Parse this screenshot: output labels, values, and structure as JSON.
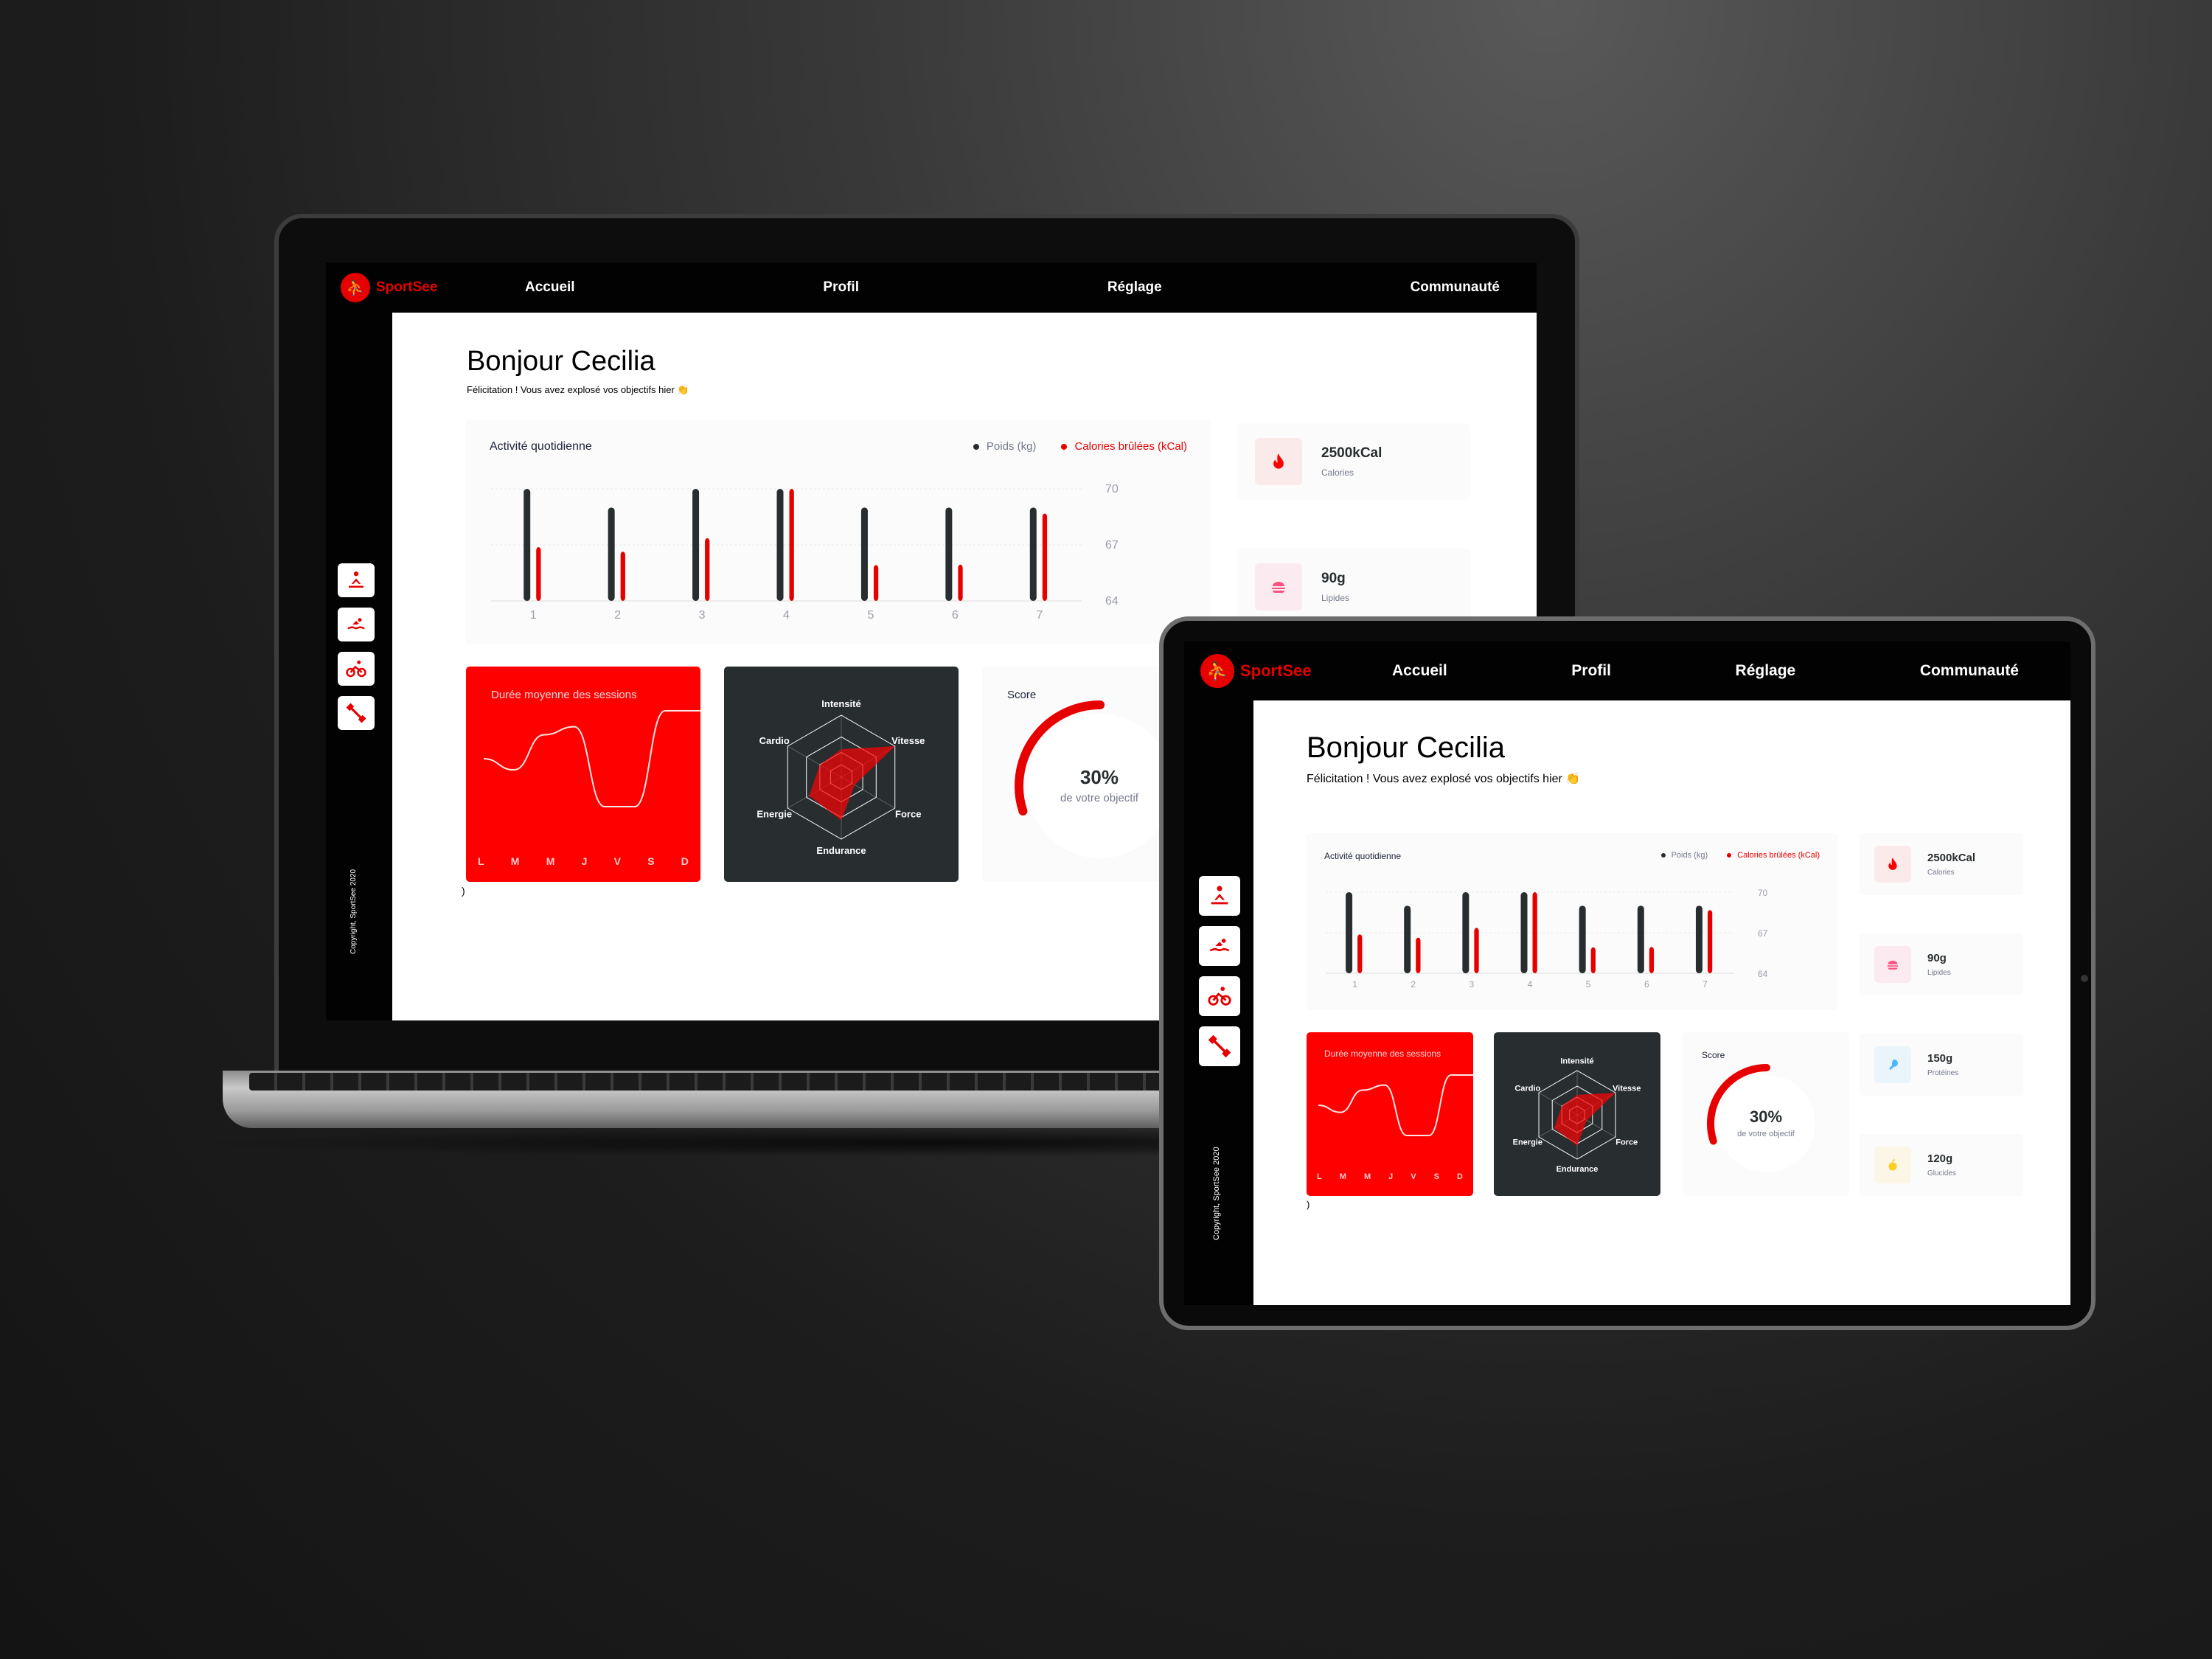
{
  "app": {
    "brand": "SportSee",
    "nav": [
      "Accueil",
      "Profil",
      "Réglage",
      "Communauté"
    ],
    "copyright": "Copyright, SportSee 2020",
    "sidebar_icons": [
      "yoga-icon",
      "swimming-icon",
      "cycling-icon",
      "dumbbell-icon"
    ]
  },
  "greeting": {
    "hello": "Bonjour",
    "name": "Cecilia",
    "message": "Félicitation ! Vous avez explosé vos objectifs hier 👏"
  },
  "activity": {
    "title": "Activité quotidienne",
    "legend_weight": "Poids (kg)",
    "legend_calories": "Calories brûlées (kCal)",
    "y_ticks": [
      "70",
      "67",
      "64"
    ]
  },
  "sessions": {
    "title": "Durée moyenne des sessions",
    "days": [
      "L",
      "M",
      "M",
      "J",
      "V",
      "S",
      "D"
    ]
  },
  "performance": {
    "labels": [
      "Intensité",
      "Vitesse",
      "Force",
      "Endurance",
      "Energie",
      "Cardio"
    ]
  },
  "score": {
    "title": "Score",
    "percent": "30%",
    "caption": "de votre objectif",
    "value": 0.3
  },
  "kpis": [
    {
      "value": "2500kCal",
      "label": "Calories",
      "icon": "flame-icon",
      "color": "#ff0000",
      "bg": "#fbeaea"
    },
    {
      "value": "90g",
      "label": "Lipides",
      "icon": "burger-icon",
      "color": "#fd5181",
      "bg": "#fbeaef"
    },
    {
      "value": "150g",
      "label": "Protéines",
      "icon": "drumstick-icon",
      "color": "#4ab8ff",
      "bg": "#e9f4fb"
    },
    {
      "value": "120g",
      "label": "Glucides",
      "icon": "apple-icon",
      "color": "#f9ce23",
      "bg": "#fbf6e5"
    }
  ],
  "laptop_kpi_2500": "2500kCal",
  "laptop_kpi_calories": "Calories",
  "paren": ")",
  "colors": {
    "accent": "#e60000",
    "topbar": "#020203",
    "radar_bg": "#282d30",
    "bar_dark": "#282d30"
  },
  "chart_data": {
    "type": "bar",
    "title": "Activité quotidienne",
    "categories": [
      "1",
      "2",
      "3",
      "4",
      "5",
      "6",
      "7"
    ],
    "series": [
      {
        "name": "Poids (kg)",
        "values": [
          70,
          69,
          70,
          70,
          69,
          69,
          69
        ]
      },
      {
        "name": "Calories brûlées (kCal)",
        "values": [
          240,
          220,
          280,
          500,
          160,
          162,
          390
        ]
      }
    ],
    "y_ticks": [
      64,
      67,
      70
    ],
    "session_curve": [
      30,
      23,
      45,
      50,
      0,
      0,
      60
    ],
    "radar_values": [
      90,
      200,
      50,
      140,
      120,
      80
    ]
  }
}
